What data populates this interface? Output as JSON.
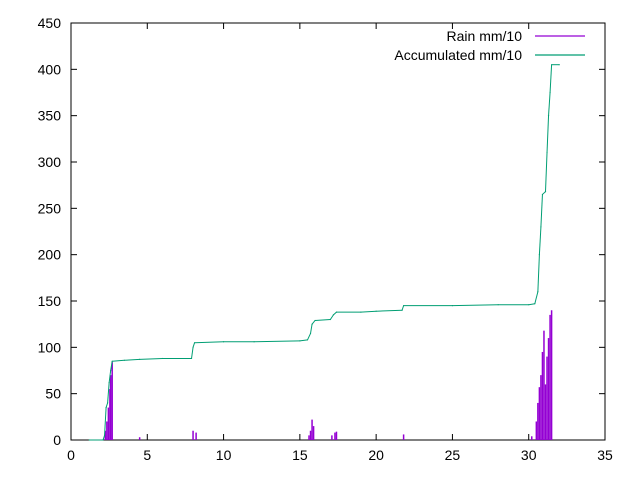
{
  "chart_data": {
    "type": "line",
    "title": "",
    "xlabel": "",
    "ylabel": "",
    "xlim": [
      0,
      35
    ],
    "ylim": [
      0,
      450
    ],
    "x_ticks": [
      0,
      5,
      10,
      15,
      20,
      25,
      30,
      35
    ],
    "y_ticks": [
      0,
      50,
      100,
      150,
      200,
      250,
      300,
      350,
      400,
      450
    ],
    "grid": false,
    "legend_position": "top-right",
    "series": [
      {
        "name": "Rain mm/10",
        "style": "impulses",
        "color": "#9400d3",
        "points": [
          [
            2.25,
            10
          ],
          [
            2.35,
            20
          ],
          [
            2.45,
            35
          ],
          [
            2.55,
            55
          ],
          [
            2.6,
            70
          ],
          [
            2.7,
            84
          ],
          [
            4.5,
            3
          ],
          [
            8.0,
            10
          ],
          [
            8.2,
            8
          ],
          [
            15.6,
            5
          ],
          [
            15.7,
            10
          ],
          [
            15.8,
            22
          ],
          [
            15.9,
            15
          ],
          [
            17.1,
            5
          ],
          [
            17.3,
            8
          ],
          [
            17.4,
            9
          ],
          [
            21.8,
            6
          ],
          [
            30.2,
            4
          ],
          [
            30.5,
            20
          ],
          [
            30.6,
            40
          ],
          [
            30.7,
            57
          ],
          [
            30.8,
            70
          ],
          [
            30.9,
            95
          ],
          [
            31.0,
            118
          ],
          [
            31.1,
            60
          ],
          [
            31.2,
            90
          ],
          [
            31.3,
            110
          ],
          [
            31.4,
            135
          ],
          [
            31.5,
            140
          ]
        ]
      },
      {
        "name": "Accumulated mm/10",
        "style": "line",
        "color": "#009e73",
        "points": [
          [
            1.2,
            0
          ],
          [
            2.1,
            0
          ],
          [
            2.2,
            5
          ],
          [
            2.3,
            35
          ],
          [
            2.4,
            40
          ],
          [
            2.5,
            62
          ],
          [
            2.6,
            75
          ],
          [
            2.7,
            85
          ],
          [
            3.5,
            86
          ],
          [
            4.5,
            87
          ],
          [
            6.0,
            88
          ],
          [
            7.9,
            88
          ],
          [
            8.0,
            100
          ],
          [
            8.1,
            105
          ],
          [
            10.0,
            106
          ],
          [
            12.0,
            106
          ],
          [
            15.0,
            107
          ],
          [
            15.5,
            108
          ],
          [
            15.7,
            115
          ],
          [
            15.8,
            125
          ],
          [
            16.0,
            129
          ],
          [
            17.0,
            130
          ],
          [
            17.2,
            135
          ],
          [
            17.4,
            138
          ],
          [
            19.0,
            138
          ],
          [
            20.0,
            139
          ],
          [
            21.7,
            140
          ],
          [
            21.8,
            145
          ],
          [
            25.0,
            145
          ],
          [
            28.0,
            146
          ],
          [
            30.0,
            146
          ],
          [
            30.4,
            147
          ],
          [
            30.6,
            160
          ],
          [
            30.7,
            200
          ],
          [
            30.8,
            230
          ],
          [
            30.9,
            265
          ],
          [
            31.1,
            268
          ],
          [
            31.2,
            310
          ],
          [
            31.3,
            350
          ],
          [
            31.4,
            375
          ],
          [
            31.5,
            405
          ],
          [
            32.0,
            405
          ]
        ]
      }
    ]
  }
}
